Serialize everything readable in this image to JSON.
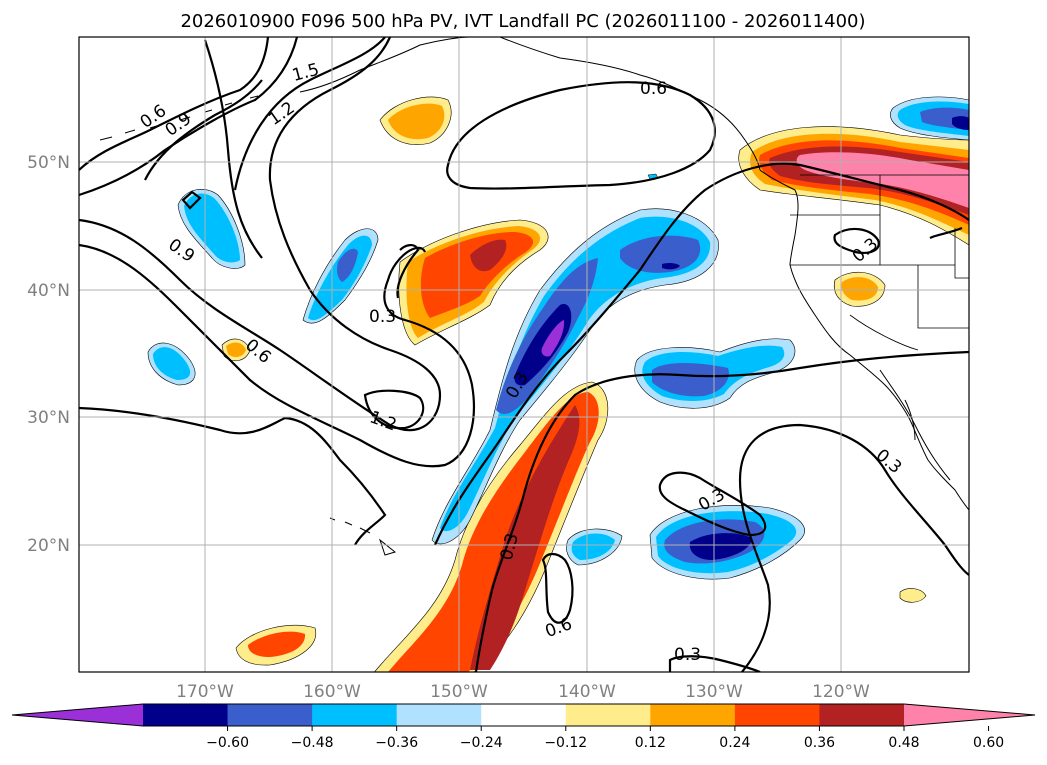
{
  "title": "2026010900 F096 500 hPa PV, IVT Landfall PC (2026011100 - 2026011400)",
  "map": {
    "lon_ticks": [
      "170°W",
      "160°W",
      "150°W",
      "140°W",
      "130°W",
      "120°W"
    ],
    "lat_ticks": [
      "50°N",
      "40°N",
      "30°N",
      "20°N"
    ]
  },
  "contour_labels": {
    "a": "0.6",
    "b": "0.9",
    "c": "1.2",
    "d": "1.5",
    "e": "0.6",
    "f": "0.9",
    "g": "0.6",
    "h": "0.3",
    "i": "1.2",
    "j": "0.3",
    "k": "0.3",
    "l": "0.3",
    "m": "0.3",
    "n": "0.6",
    "o": "0.3",
    "p": "0.3"
  },
  "colorbar": {
    "ticks": [
      "−0.60",
      "−0.48",
      "−0.36",
      "−0.24",
      "−0.12",
      "0.12",
      "0.24",
      "0.36",
      "0.48",
      "0.60"
    ],
    "colors": [
      "#9b30d9",
      "#00008b",
      "#3a5fcd",
      "#00bfff",
      "#b0e2ff",
      "#ffffff",
      "#ffec8b",
      "#ffa500",
      "#ff4500",
      "#b22222",
      "#ff82ab"
    ]
  }
}
